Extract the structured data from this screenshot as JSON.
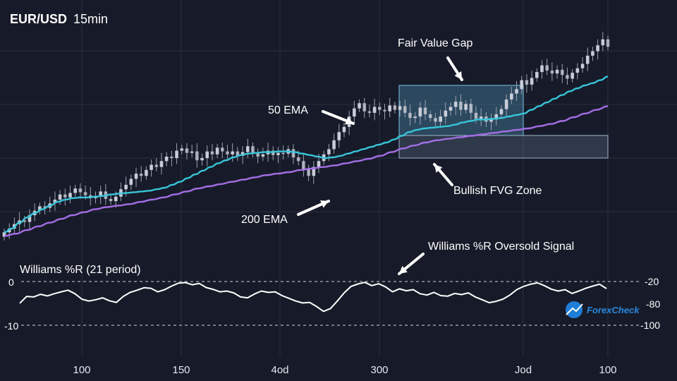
{
  "header": {
    "symbol": "EUR/USD",
    "timeframe": "15min"
  },
  "colors": {
    "background": "#171b29",
    "grid": "#2a2f3f",
    "candle_up": "#d0d4de",
    "candle_down": "#d0d4de",
    "ema50": "#37c6da",
    "ema200": "#a56ee6",
    "fvg_fill": "#5aa8d0",
    "williams_line": "#ffffff"
  },
  "annotations": {
    "ema50": "50 EMA",
    "ema200": "200 EMA",
    "fvg": "Fair Value Gap",
    "fvg_zone": "Bullish FVG Zone",
    "williams_signal": "Williams %R Oversold Signal"
  },
  "indicator": {
    "title": "Williams %R (21 period)",
    "left_labels": [
      "0",
      "-10"
    ],
    "right_labels": [
      "-20",
      "-80",
      "-100"
    ]
  },
  "logo": {
    "text": "ForexCheck"
  },
  "chart_data": {
    "type": "candlestick",
    "x_tick_labels": [
      "100",
      "150",
      "4od",
      "300",
      "Jod",
      "100"
    ],
    "grid": true,
    "price": {
      "close": [
        1.0,
        1.5,
        2.1,
        2.6,
        2.4,
        3.3,
        3.9,
        4.5,
        4.3,
        4.9,
        5.4,
        6.1,
        5.7,
        6.3,
        6.9,
        6.4,
        6.0,
        5.6,
        5.9,
        6.5,
        5.5,
        5.2,
        5.8,
        6.8,
        7.4,
        8.2,
        8.9,
        8.6,
        9.4,
        10.1,
        9.8,
        10.6,
        11.2,
        11.0,
        12.0,
        12.3,
        11.7,
        11.9,
        10.7,
        11.0,
        11.9,
        11.5,
        12.4,
        11.9,
        11.5,
        11.9,
        11.3,
        11.8,
        12.6,
        11.6,
        11.2,
        11.5,
        12.0,
        11.4,
        11.7,
        11.6,
        12.2,
        11.1,
        10.6,
        9.5,
        8.6,
        9.8,
        10.6,
        11.5,
        12.2,
        13.4,
        14.5,
        15.2,
        16.6,
        17.7,
        18.4,
        17.3,
        17.1,
        17.9,
        17.5,
        17.3,
        18.1,
        17.5,
        18.0,
        17.1,
        16.4,
        16.6,
        17.8,
        16.9,
        16.4,
        15.9,
        16.6,
        17.4,
        17.9,
        18.6,
        17.5,
        18.3,
        17.1,
        16.3,
        16.6,
        15.9,
        16.2,
        16.9,
        17.6,
        18.9,
        19.7,
        20.3,
        21.5,
        20.9,
        21.8,
        22.6,
        23.5,
        22.8,
        22.4,
        22.9,
        22.2,
        21.7,
        22.5,
        23.1,
        23.7,
        24.8,
        25.4,
        26.2,
        27.0,
        26.0
      ]
    },
    "ema50": [
      1.0,
      1.5,
      2.3,
      3.0,
      3.6,
      4.1,
      4.6,
      5.1,
      5.4,
      5.6,
      5.7,
      5.7,
      5.8,
      5.9,
      6.1,
      6.2,
      6.3,
      6.4,
      6.5,
      6.6,
      6.8,
      7.0,
      7.4,
      7.8,
      8.3,
      8.8,
      9.3,
      9.8,
      10.3,
      10.7,
      11.1,
      11.4,
      11.6,
      11.7,
      11.8,
      11.8,
      11.9,
      11.9,
      11.8,
      11.6,
      11.4,
      11.2,
      11.0,
      11.1,
      11.3,
      11.6,
      11.9,
      12.2,
      12.5,
      12.8,
      13.1,
      13.5,
      14.0,
      14.5,
      14.8,
      15.0,
      15.1,
      15.2,
      15.3,
      15.5,
      15.8,
      16.0,
      16.2,
      16.2,
      16.3,
      16.4,
      16.6,
      16.8,
      17.0,
      17.5,
      18.0,
      18.5,
      19.0,
      19.5,
      20.0,
      20.4,
      20.8,
      21.1,
      21.5,
      22.0
    ],
    "ema200": [
      0.5,
      0.8,
      1.3,
      1.8,
      2.3,
      2.8,
      3.3,
      3.7,
      4.1,
      4.4,
      4.6,
      4.8,
      5.1,
      5.4,
      5.7,
      6.1,
      6.5,
      6.9,
      7.2,
      7.5,
      7.8,
      8.1,
      8.4,
      8.7,
      8.9,
      9.1,
      9.4,
      9.6,
      9.8,
      10.0,
      10.3,
      10.6,
      10.9,
      11.3,
      11.8,
      12.3,
      12.7,
      13.1,
      13.4,
      13.6,
      13.8,
      14.0,
      14.2,
      14.4,
      14.6,
      14.8,
      15.0,
      15.3,
      15.6,
      16.0,
      16.5,
      17.0,
      17.5,
      18.0
    ],
    "williams_r": [
      -80,
      -55,
      -57,
      -47,
      -53,
      -45,
      -38,
      -32,
      -45,
      -65,
      -72,
      -67,
      -60,
      -71,
      -77,
      -55,
      -40,
      -32,
      -23,
      -25,
      -38,
      -30,
      -17,
      -6,
      -4,
      -12,
      -7,
      -22,
      -29,
      -38,
      -35,
      -42,
      -57,
      -60,
      -46,
      -35,
      -40,
      -38,
      -52,
      -62,
      -72,
      -79,
      -77,
      -92,
      -110,
      -100,
      -72,
      -42,
      -18,
      -9,
      -3,
      -15,
      -8,
      -20,
      -38,
      -27,
      -34,
      -30,
      -45,
      -50,
      -40,
      -52,
      -54,
      -44,
      -48,
      -42,
      -57,
      -67,
      -78,
      -73,
      -65,
      -50,
      -30,
      -18,
      -10,
      -5,
      -15,
      -28,
      -35,
      -30,
      -44,
      -35,
      -25,
      -17,
      -10,
      -26
    ]
  }
}
